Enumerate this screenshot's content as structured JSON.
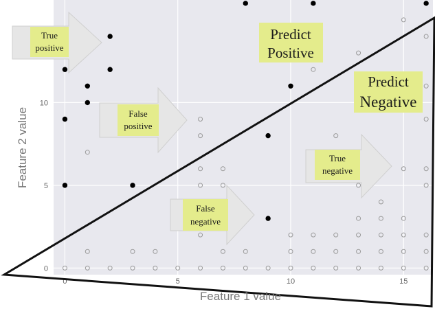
{
  "chart_data": {
    "type": "scatter",
    "title": "",
    "xlabel": "Feature 1 value",
    "ylabel": "Feature 2 value",
    "xlim": [
      -0.5,
      16.3
    ],
    "ylim": [
      -0.4,
      16.2
    ],
    "x_ticks": [
      "0",
      "5",
      "10",
      "15"
    ],
    "y_ticks": [
      "0",
      "5",
      "10"
    ],
    "grid": true,
    "colors": {
      "plot_background": "#e8e8ee",
      "positive_fill": "#000000",
      "negative_stroke": "#9a9a9a",
      "annotation_fill": "#e4ec8c",
      "arrow_fill": "#e6e6e6"
    },
    "series": [
      {
        "marker": "filled",
        "points": [
          [
            0,
            5
          ],
          [
            0,
            9
          ],
          [
            0,
            12
          ],
          [
            0,
            13
          ],
          [
            1,
            10
          ],
          [
            1,
            11
          ],
          [
            2,
            12
          ],
          [
            2,
            14
          ],
          [
            3,
            5
          ],
          [
            8,
            16
          ],
          [
            9,
            8
          ],
          [
            9,
            3
          ],
          [
            10,
            11
          ],
          [
            11,
            16
          ],
          [
            16,
            16
          ]
        ]
      },
      {
        "marker": "hollow",
        "points": [
          [
            0,
            0
          ],
          [
            1,
            0
          ],
          [
            2,
            0
          ],
          [
            3,
            0
          ],
          [
            4,
            0
          ],
          [
            5,
            0
          ],
          [
            6,
            0
          ],
          [
            7,
            0
          ],
          [
            8,
            0
          ],
          [
            9,
            0
          ],
          [
            10,
            0
          ],
          [
            11,
            0
          ],
          [
            12,
            0
          ],
          [
            13,
            0
          ],
          [
            14,
            0
          ],
          [
            15,
            0
          ],
          [
            16,
            0
          ],
          [
            1,
            1
          ],
          [
            3,
            1
          ],
          [
            4,
            1
          ],
          [
            7,
            1
          ],
          [
            8,
            1
          ],
          [
            10,
            1
          ],
          [
            11,
            1
          ],
          [
            12,
            1
          ],
          [
            13,
            1
          ],
          [
            14,
            1
          ],
          [
            15,
            1
          ],
          [
            16,
            1
          ],
          [
            10,
            2
          ],
          [
            11,
            2
          ],
          [
            12,
            2
          ],
          [
            13,
            2
          ],
          [
            14,
            2
          ],
          [
            15,
            2
          ],
          [
            16,
            2
          ],
          [
            6,
            2
          ],
          [
            7,
            3
          ],
          [
            7,
            4
          ],
          [
            6,
            5
          ],
          [
            7,
            5
          ],
          [
            6,
            6
          ],
          [
            7,
            6
          ],
          [
            6,
            8
          ],
          [
            6,
            9
          ],
          [
            1,
            7
          ],
          [
            13,
            3
          ],
          [
            14,
            3
          ],
          [
            14,
            4
          ],
          [
            13,
            5
          ],
          [
            15,
            3
          ],
          [
            16,
            5
          ],
          [
            15,
            6
          ],
          [
            16,
            6
          ],
          [
            16,
            9
          ],
          [
            12,
            8
          ],
          [
            11,
            12
          ],
          [
            13,
            13
          ],
          [
            15,
            15
          ],
          [
            16,
            14
          ],
          [
            16,
            11
          ]
        ]
      }
    ],
    "annotations": {
      "predict_positive": [
        "Predict",
        "Positive"
      ],
      "predict_negative": [
        "Predict",
        "Negative"
      ],
      "true_positive": [
        "True",
        "positive"
      ],
      "false_positive": [
        "False",
        "positive"
      ],
      "false_negative": [
        "False",
        "negative"
      ],
      "true_negative": [
        "True",
        "negative"
      ]
    }
  }
}
